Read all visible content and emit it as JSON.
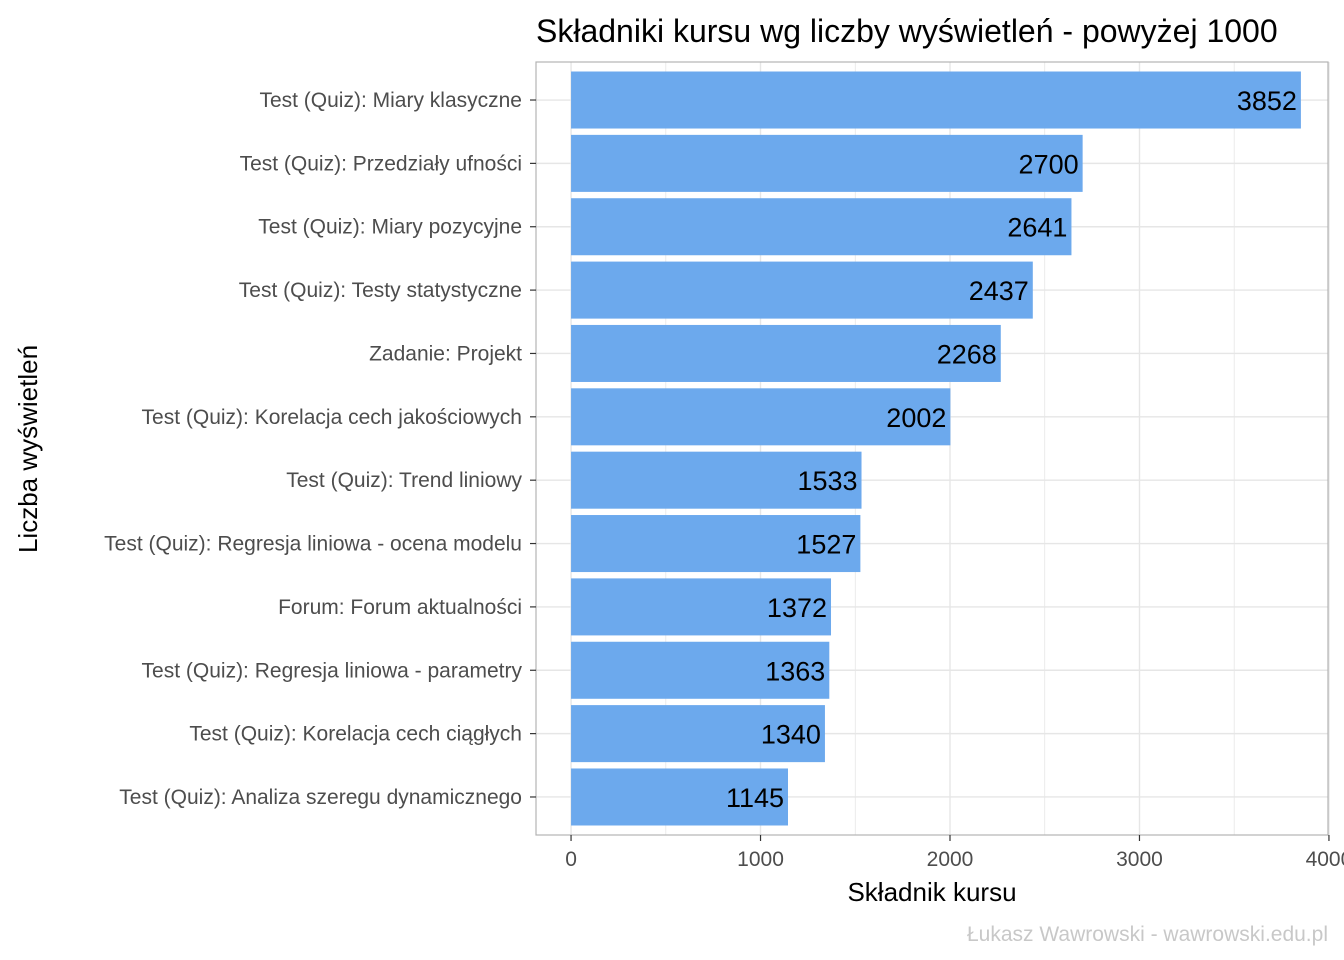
{
  "chart_data": {
    "type": "bar",
    "orientation": "horizontal",
    "title": "Składniki kursu wg liczby wyświetleń - powyżej 1000",
    "xlabel": "Składnik kursu",
    "ylabel": "Liczba wyświetleń",
    "caption": "Łukasz Wawrowski - wawrowski.edu.pl",
    "categories": [
      "Test (Quiz): Miary klasyczne",
      "Test (Quiz): Przedziały ufności",
      "Test (Quiz): Miary pozycyjne",
      "Test (Quiz): Testy statystyczne",
      "Zadanie: Projekt",
      "Test (Quiz): Korelacja cech jakościowych",
      "Test (Quiz): Trend liniowy",
      "Test (Quiz): Regresja liniowa - ocena modelu",
      "Forum: Forum aktualności",
      "Test (Quiz): Regresja liniowa - parametry",
      "Test (Quiz): Korelacja cech ciągłych",
      "Test (Quiz): Analiza szeregu dynamicznego"
    ],
    "values": [
      3852,
      2700,
      2641,
      2437,
      2268,
      2002,
      1533,
      1527,
      1372,
      1363,
      1340,
      1145
    ],
    "value_labels": [
      "3852",
      "2700",
      "2641",
      "2437",
      "2268",
      "2002",
      "1533",
      "1527",
      "1372",
      "1363",
      "1340",
      "1145"
    ],
    "xlim": [
      -185,
      3995
    ],
    "ticks": [
      0,
      1000,
      2000,
      3000,
      4000
    ],
    "tick_labels": [
      "0",
      "1000",
      "2000",
      "3000",
      "4000"
    ],
    "grid": true,
    "bar_color": "#6ca9ed",
    "grid_color": "#e6e6e6",
    "panel_border_color": "#b3b3b3"
  }
}
